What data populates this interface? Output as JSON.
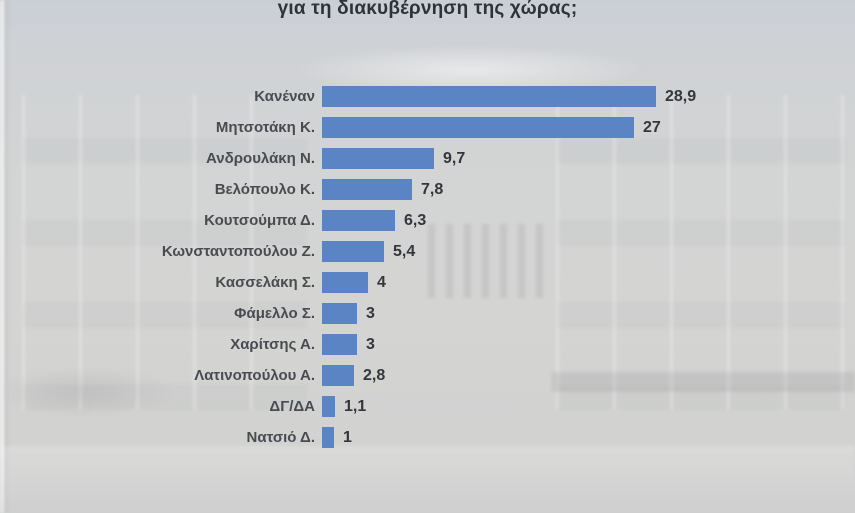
{
  "title": "για τη διακυβέρνηση της χώρας;",
  "chart_data": {
    "type": "bar",
    "orientation": "horizontal",
    "title": "για τη διακυβέρνηση της χώρας;",
    "categories": [
      "Κανέναν",
      "Μητσοτάκη Κ.",
      "Ανδρουλάκη Ν.",
      "Βελόπουλο Κ.",
      "Κουτσούμπα Δ.",
      "Κωνσταντοπούλου Ζ.",
      "Κασσελάκη Σ.",
      "Φάμελλο Σ.",
      "Χαρίτσης Α.",
      "Λατινοπούλου Α.",
      "ΔΓ/ΔΑ",
      "Νατσιό Δ."
    ],
    "values": [
      28.9,
      27,
      9.7,
      7.8,
      6.3,
      5.4,
      4,
      3,
      3,
      2.8,
      1.1,
      1
    ],
    "value_labels": [
      "28,9",
      "27",
      "9,7",
      "7,8",
      "6,3",
      "5,4",
      "4",
      "3",
      "3",
      "2,8",
      "1,1",
      "1"
    ],
    "xlim": [
      0,
      30
    ],
    "grid": false,
    "legend": null,
    "data_labels": "end-of-bar",
    "bar_color": "#5b84c4"
  },
  "colors": {
    "bar": "#5b84c4",
    "background_base": "#d2d3d5",
    "title_text": "#2f3337",
    "category_text": "#484c51",
    "value_text": "#33363a"
  },
  "background": {
    "watermark": "faded photo of the Hellenic Parliament building"
  }
}
